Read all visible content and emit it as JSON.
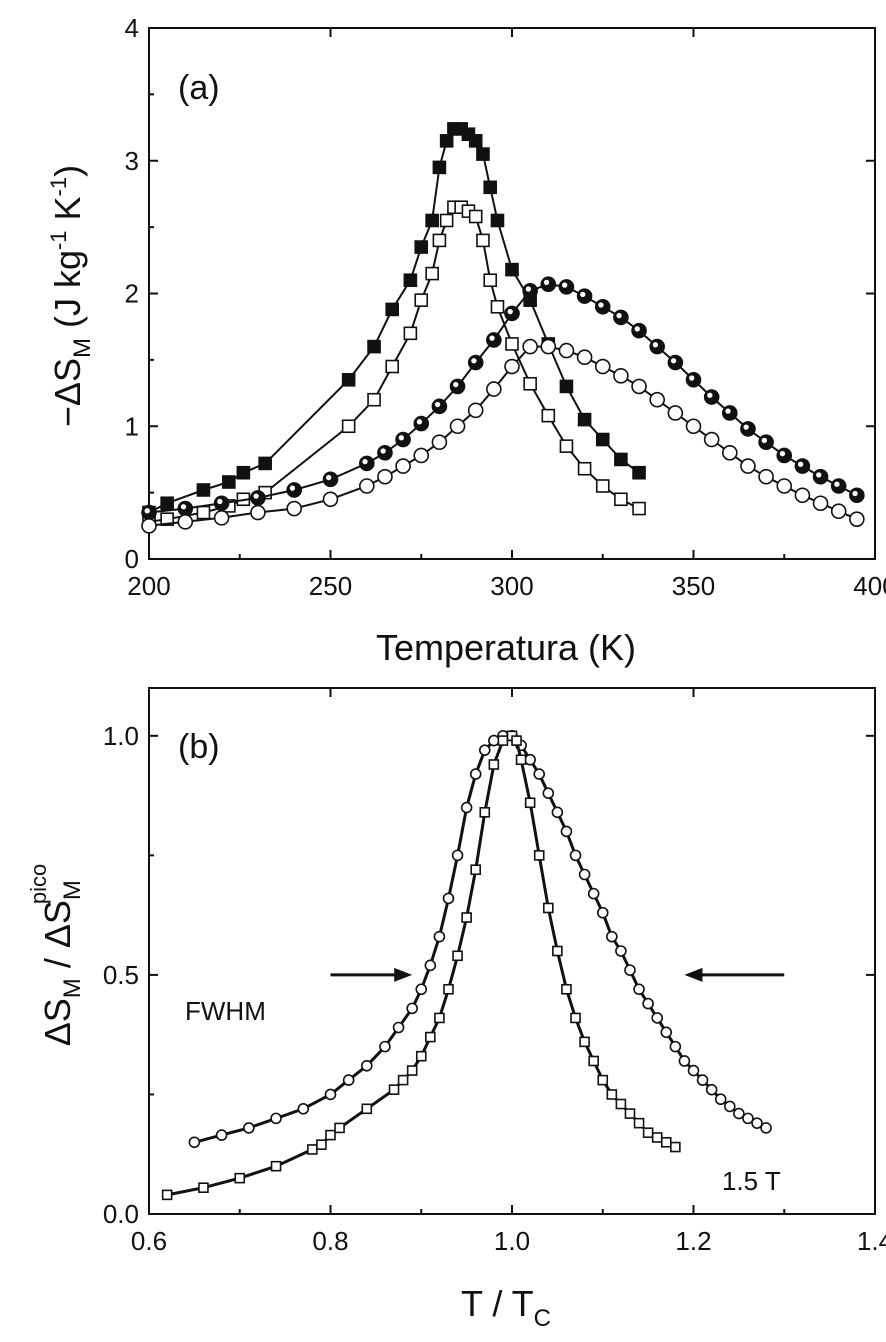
{
  "chart_data": [
    {
      "type": "line",
      "panel_label": "(a)",
      "xlabel": "Temperatura (K)",
      "ylabel": {
        "main": "−ΔS",
        "sub": "M",
        "unit_open": " (J kg",
        "sup1": "-1",
        "mid": " K",
        "sup2": "-1",
        "unit_close": ")"
      },
      "xlim": [
        200,
        400
      ],
      "ylim": [
        0,
        4
      ],
      "xticks": [
        200,
        250,
        300,
        350,
        400
      ],
      "yticks": [
        0,
        1,
        2,
        3,
        4
      ],
      "xtick_labels": [
        "200",
        "250",
        "300",
        "350",
        "400"
      ],
      "ytick_labels": [
        "0",
        "1",
        "2",
        "3",
        "4"
      ],
      "grid": false,
      "series": [
        {
          "marker": "square-filled",
          "x": [
            200,
            205,
            215,
            222,
            226,
            232,
            255,
            262,
            267,
            272,
            275,
            278,
            280,
            282,
            284,
            286,
            288,
            290,
            292,
            294,
            296,
            300,
            305,
            310,
            315,
            320,
            325,
            330,
            335
          ],
          "y": [
            0.35,
            0.42,
            0.52,
            0.58,
            0.65,
            0.72,
            1.35,
            1.6,
            1.88,
            2.1,
            2.35,
            2.55,
            2.95,
            3.15,
            3.24,
            3.24,
            3.2,
            3.15,
            3.05,
            2.8,
            2.55,
            2.18,
            1.95,
            1.62,
            1.3,
            1.05,
            0.9,
            0.75,
            0.65
          ]
        },
        {
          "marker": "square-open",
          "x": [
            200,
            205,
            215,
            222,
            226,
            232,
            255,
            262,
            267,
            272,
            275,
            278,
            280,
            282,
            284,
            286,
            288,
            290,
            292,
            294,
            296,
            300,
            305,
            310,
            315,
            320,
            325,
            330,
            335
          ],
          "y": [
            0.28,
            0.3,
            0.35,
            0.4,
            0.45,
            0.5,
            1.0,
            1.2,
            1.45,
            1.7,
            1.95,
            2.15,
            2.4,
            2.55,
            2.65,
            2.65,
            2.62,
            2.58,
            2.4,
            2.1,
            1.9,
            1.62,
            1.32,
            1.08,
            0.85,
            0.68,
            0.55,
            0.45,
            0.38
          ]
        },
        {
          "marker": "circle-half",
          "x": [
            200,
            210,
            220,
            230,
            240,
            250,
            260,
            265,
            270,
            275,
            280,
            285,
            290,
            295,
            300,
            305,
            310,
            315,
            320,
            325,
            330,
            335,
            340,
            345,
            350,
            355,
            360,
            365,
            370,
            375,
            380,
            385,
            390,
            395
          ],
          "y": [
            0.35,
            0.38,
            0.42,
            0.46,
            0.52,
            0.6,
            0.72,
            0.8,
            0.9,
            1.02,
            1.15,
            1.3,
            1.48,
            1.65,
            1.85,
            2.02,
            2.07,
            2.05,
            1.98,
            1.9,
            1.82,
            1.72,
            1.6,
            1.48,
            1.35,
            1.22,
            1.1,
            0.98,
            0.88,
            0.78,
            0.7,
            0.62,
            0.55,
            0.48
          ]
        },
        {
          "marker": "circle-open",
          "x": [
            200,
            210,
            220,
            230,
            240,
            250,
            260,
            265,
            270,
            275,
            280,
            285,
            290,
            295,
            300,
            305,
            310,
            315,
            320,
            325,
            330,
            335,
            340,
            345,
            350,
            355,
            360,
            365,
            370,
            375,
            380,
            385,
            390,
            395
          ],
          "y": [
            0.25,
            0.28,
            0.31,
            0.35,
            0.38,
            0.45,
            0.55,
            0.62,
            0.7,
            0.78,
            0.88,
            1.0,
            1.12,
            1.28,
            1.45,
            1.6,
            1.6,
            1.57,
            1.52,
            1.45,
            1.38,
            1.3,
            1.2,
            1.1,
            1.0,
            0.9,
            0.8,
            0.7,
            0.62,
            0.55,
            0.48,
            0.42,
            0.36,
            0.3
          ]
        }
      ]
    },
    {
      "type": "line",
      "panel_label": "(b)",
      "xlabel": {
        "main": "T / T",
        "sub": "C"
      },
      "ylabel": {
        "main": "ΔS",
        "sub1": "M",
        "mid": " / ΔS",
        "sub2": "M",
        "sup": "pico"
      },
      "xlim": [
        0.6,
        1.4
      ],
      "ylim": [
        0,
        1.1
      ],
      "xticks": [
        0.6,
        0.8,
        1.0,
        1.2,
        1.4
      ],
      "yticks": [
        0.0,
        0.5,
        1.0
      ],
      "xtick_labels": [
        "0.6",
        "0.8",
        "1.0",
        "1.2",
        "1.4"
      ],
      "ytick_labels": [
        "0.0",
        "0.5",
        "1.0"
      ],
      "grid": false,
      "annotations": [
        {
          "text": "FWHM",
          "x": 0.71,
          "y": 0.5
        },
        {
          "text": "1.5 T",
          "x": 1.27,
          "y": 0.09
        }
      ],
      "arrows": [
        {
          "direction": "right",
          "x_from": 0.8,
          "x_to": 0.89,
          "y": 0.5
        },
        {
          "direction": "left",
          "x_from": 1.3,
          "x_to": 1.19,
          "y": 0.5
        }
      ],
      "series": [
        {
          "marker": "circle-open",
          "x": [
            0.65,
            0.68,
            0.71,
            0.74,
            0.77,
            0.8,
            0.82,
            0.84,
            0.86,
            0.875,
            0.89,
            0.9,
            0.91,
            0.92,
            0.93,
            0.94,
            0.95,
            0.96,
            0.97,
            0.98,
            0.99,
            1.0,
            1.01,
            1.02,
            1.03,
            1.04,
            1.05,
            1.06,
            1.07,
            1.08,
            1.09,
            1.1,
            1.11,
            1.12,
            1.13,
            1.14,
            1.15,
            1.16,
            1.17,
            1.18,
            1.19,
            1.2,
            1.21,
            1.22,
            1.23,
            1.24,
            1.25,
            1.26,
            1.27,
            1.28
          ],
          "y": [
            0.15,
            0.165,
            0.18,
            0.2,
            0.22,
            0.25,
            0.28,
            0.31,
            0.35,
            0.39,
            0.43,
            0.47,
            0.52,
            0.58,
            0.66,
            0.75,
            0.85,
            0.92,
            0.97,
            0.99,
            1.0,
            1.0,
            0.98,
            0.95,
            0.92,
            0.88,
            0.84,
            0.8,
            0.75,
            0.71,
            0.67,
            0.63,
            0.58,
            0.55,
            0.51,
            0.47,
            0.44,
            0.41,
            0.38,
            0.35,
            0.32,
            0.3,
            0.28,
            0.26,
            0.24,
            0.225,
            0.21,
            0.2,
            0.19,
            0.18
          ]
        },
        {
          "marker": "square-open",
          "x": [
            0.62,
            0.66,
            0.7,
            0.74,
            0.78,
            0.79,
            0.8,
            0.81,
            0.84,
            0.87,
            0.88,
            0.89,
            0.9,
            0.91,
            0.92,
            0.93,
            0.94,
            0.95,
            0.96,
            0.97,
            0.98,
            0.99,
            1.0,
            1.005,
            1.01,
            1.02,
            1.03,
            1.04,
            1.05,
            1.06,
            1.07,
            1.08,
            1.09,
            1.1,
            1.11,
            1.12,
            1.13,
            1.14,
            1.15,
            1.16,
            1.17,
            1.18
          ],
          "y": [
            0.04,
            0.055,
            0.075,
            0.1,
            0.135,
            0.145,
            0.165,
            0.18,
            0.22,
            0.26,
            0.28,
            0.3,
            0.33,
            0.37,
            0.41,
            0.47,
            0.54,
            0.62,
            0.72,
            0.84,
            0.94,
            0.99,
            1.0,
            0.99,
            0.95,
            0.86,
            0.75,
            0.64,
            0.55,
            0.47,
            0.41,
            0.36,
            0.32,
            0.28,
            0.25,
            0.23,
            0.21,
            0.19,
            0.17,
            0.16,
            0.15,
            0.14
          ]
        }
      ]
    }
  ]
}
